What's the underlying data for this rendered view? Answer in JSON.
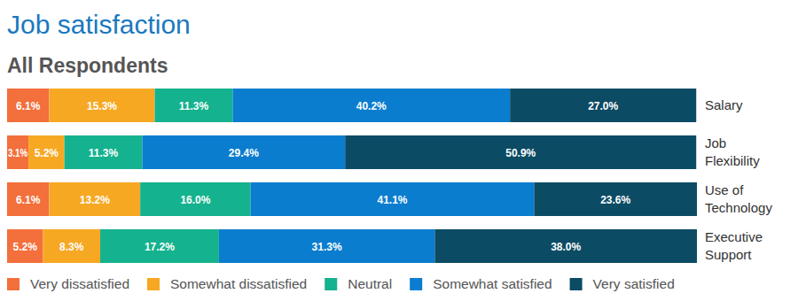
{
  "chart_data": {
    "type": "bar",
    "title": "Job satisfaction",
    "subtitle": "All Respondents",
    "orientation": "horizontal",
    "stacked": true,
    "data_labels": true,
    "tick_labels": "y",
    "legend": "bottom",
    "xlim": [
      0,
      100
    ],
    "categories": [
      "Salary",
      "Job Flexibility",
      "Use of Technology",
      "Executive Support"
    ],
    "series": [
      {
        "name": "Very dissatisfied",
        "color": "#f36f3b",
        "values": [
          6.1,
          3.1,
          6.1,
          5.2
        ],
        "value_labels": [
          "6.1%",
          "3.1%",
          "6.1%",
          "5.2%"
        ]
      },
      {
        "name": "Somewhat dissatisfied",
        "color": "#f7a823",
        "values": [
          15.3,
          5.2,
          13.2,
          8.3
        ],
        "value_labels": [
          "15.3%",
          "5.2%",
          "13.2%",
          "8.3%"
        ]
      },
      {
        "name": "Neutral",
        "color": "#14b28e",
        "values": [
          11.3,
          11.3,
          16.0,
          17.2
        ],
        "value_labels": [
          "11.3%",
          "11.3%",
          "16.0%",
          "17.2%"
        ]
      },
      {
        "name": "Somewhat satisfied",
        "color": "#0a7dcf",
        "values": [
          40.2,
          29.4,
          41.1,
          31.3
        ],
        "value_labels": [
          "40.2%",
          "29.4%",
          "41.1%",
          "31.3%"
        ]
      },
      {
        "name": "Very satisfied",
        "color": "#0c4b64",
        "values": [
          27.0,
          50.9,
          23.6,
          38.0
        ],
        "value_labels": [
          "27.0%",
          "50.9%",
          "23.6%",
          "38.0%"
        ]
      }
    ]
  }
}
